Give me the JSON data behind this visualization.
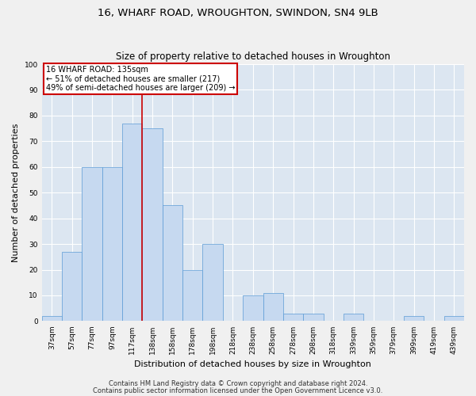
{
  "title1": "16, WHARF ROAD, WROUGHTON, SWINDON, SN4 9LB",
  "title2": "Size of property relative to detached houses in Wroughton",
  "xlabel": "Distribution of detached houses by size in Wroughton",
  "ylabel": "Number of detached properties",
  "categories": [
    "37sqm",
    "57sqm",
    "77sqm",
    "97sqm",
    "117sqm",
    "138sqm",
    "158sqm",
    "178sqm",
    "198sqm",
    "218sqm",
    "238sqm",
    "258sqm",
    "278sqm",
    "298sqm",
    "318sqm",
    "339sqm",
    "359sqm",
    "379sqm",
    "399sqm",
    "419sqm",
    "439sqm"
  ],
  "values": [
    2,
    27,
    60,
    60,
    77,
    75,
    45,
    20,
    30,
    0,
    10,
    11,
    3,
    3,
    0,
    3,
    0,
    0,
    2,
    0,
    2
  ],
  "bar_color": "#c6d9f0",
  "bar_edge_color": "#5b9bd5",
  "bg_color": "#dce6f1",
  "grid_color": "#ffffff",
  "annotation_text": "16 WHARF ROAD: 135sqm\n← 51% of detached houses are smaller (217)\n49% of semi-detached houses are larger (209) →",
  "annotation_box_color": "#ffffff",
  "annotation_box_edge": "#cc0000",
  "red_line_x": 4.5,
  "footer1": "Contains HM Land Registry data © Crown copyright and database right 2024.",
  "footer2": "Contains public sector information licensed under the Open Government Licence v3.0.",
  "ylim": [
    0,
    100
  ],
  "title_fontsize": 9.5,
  "subtitle_fontsize": 8.5,
  "axis_label_fontsize": 8,
  "tick_fontsize": 6.5,
  "annotation_fontsize": 7,
  "footer_fontsize": 6
}
